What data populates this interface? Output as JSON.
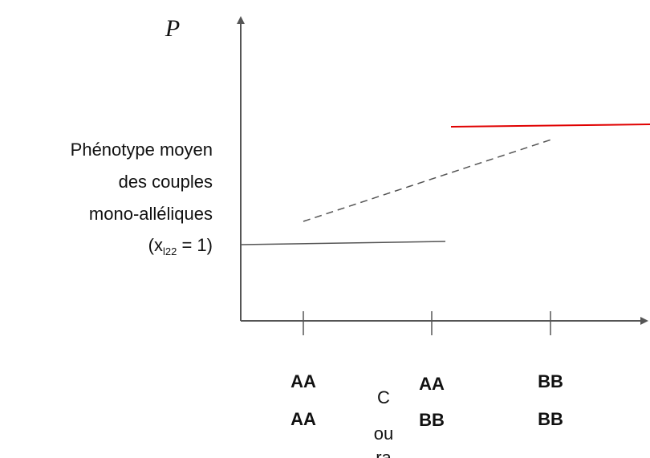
{
  "axis_label": "P",
  "y_label": {
    "lines": [
      "Phénotype moyen",
      "des couples",
      "mono-alléliques"
    ],
    "formula": {
      "open": "(x",
      "subscript": "l22",
      "close": " = 1)"
    }
  },
  "x_labels": [
    {
      "top": "AA",
      "bottom": "AA"
    },
    {
      "top": "AA",
      "bottom": "BB"
    },
    {
      "top": "BB",
      "bottom": "BB"
    }
  ],
  "note": [
    "C",
    "ou",
    "ra"
  ]
}
